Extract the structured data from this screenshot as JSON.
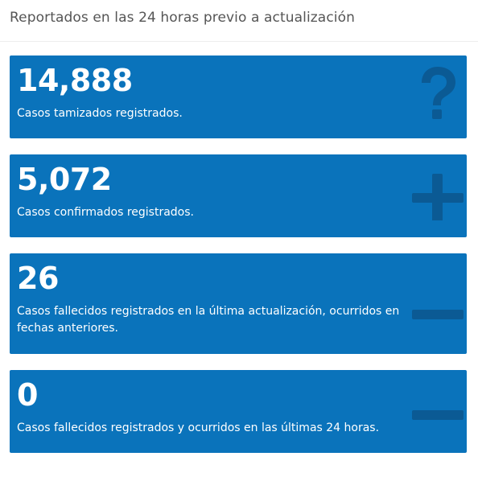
{
  "header": {
    "title": "Reportados en las 24 horas previo a actualización"
  },
  "cards": [
    {
      "number": "14,888",
      "text": "Casos tamizados registrados.",
      "icon": "question-icon"
    },
    {
      "number": "5,072",
      "text": "Casos confirmados registrados.",
      "icon": "plus-icon"
    },
    {
      "number": "26",
      "text": "Casos fallecidos registrados en la última actualización, ocurridos en fechas anteriores.",
      "icon": "minus-icon"
    },
    {
      "number": "0",
      "text": "Casos fallecidos registrados y ocurridos en las últimas 24 horas.",
      "icon": "minus-icon"
    }
  ],
  "colors": {
    "card_background": "#0a73bb",
    "icon_shade": "#0b5a94",
    "text": "#ffffff"
  }
}
